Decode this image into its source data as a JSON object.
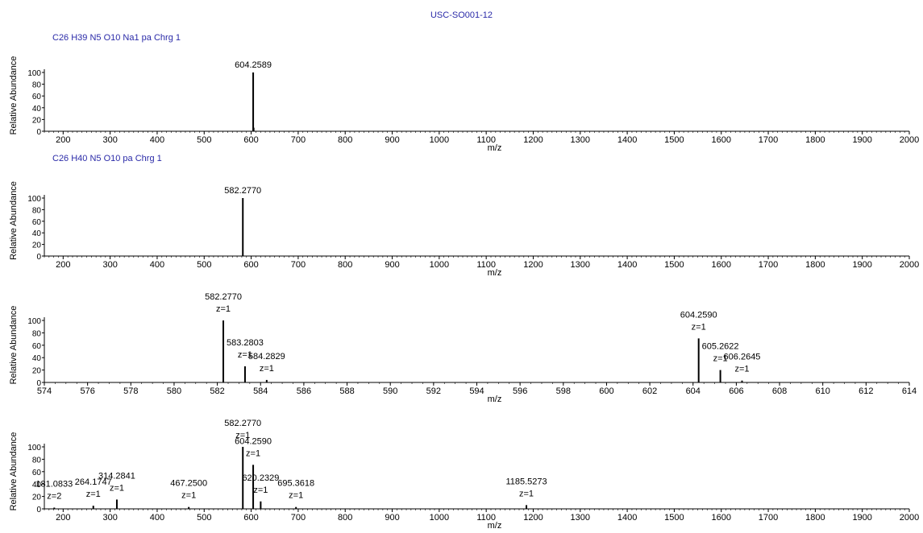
{
  "figure": {
    "title": "USC-SO001-12"
  },
  "chart_data": [
    {
      "type": "bar",
      "formula": "C26 H39 N5 O10 Na1 pa Chrg 1",
      "xlabel": "m/z",
      "ylabel": "Relative Abundance",
      "xlim": [
        160,
        2000
      ],
      "ylim": [
        0,
        100
      ],
      "xticks": [
        200,
        300,
        400,
        500,
        600,
        700,
        800,
        900,
        1000,
        1100,
        1200,
        1300,
        1400,
        1500,
        1600,
        1700,
        1800,
        1900,
        2000
      ],
      "yticks": [
        0,
        20,
        40,
        60,
        80,
        100
      ],
      "peaks": [
        {
          "x": 604.2589,
          "y": 100,
          "label": "604.2589"
        },
        {
          "x": 605.26,
          "y": 6
        }
      ]
    },
    {
      "type": "bar",
      "formula": "C26 H40 N5 O10 pa Chrg 1",
      "xlabel": "m/z",
      "ylabel": "Relative Abundance",
      "xlim": [
        160,
        2000
      ],
      "ylim": [
        0,
        100
      ],
      "xticks": [
        200,
        300,
        400,
        500,
        600,
        700,
        800,
        900,
        1000,
        1100,
        1200,
        1300,
        1400,
        1500,
        1600,
        1700,
        1800,
        1900,
        2000
      ],
      "yticks": [
        0,
        20,
        40,
        60,
        80,
        100
      ],
      "peaks": [
        {
          "x": 582.277,
          "y": 100,
          "label": "582.2770"
        }
      ]
    },
    {
      "type": "bar",
      "xlabel": "m/z",
      "ylabel": "Relative Abundance",
      "xlim": [
        574,
        614
      ],
      "ylim": [
        0,
        100
      ],
      "xticks": [
        574,
        576,
        578,
        580,
        582,
        584,
        586,
        588,
        590,
        592,
        594,
        596,
        598,
        600,
        602,
        604,
        606,
        608,
        610,
        612,
        614
      ],
      "yticks": [
        0,
        20,
        40,
        60,
        80,
        100
      ],
      "peaks": [
        {
          "x": 582.277,
          "y": 100,
          "label": "582.2770",
          "charge": "z=1"
        },
        {
          "x": 583.2803,
          "y": 26,
          "label": "583.2803",
          "charge": "z=1"
        },
        {
          "x": 584.2829,
          "y": 4,
          "label": "584.2829",
          "charge": "z=1"
        },
        {
          "x": 604.259,
          "y": 71,
          "label": "604.2590",
          "charge": "z=1"
        },
        {
          "x": 605.2622,
          "y": 20,
          "label": "605.2622",
          "charge": "z=1"
        },
        {
          "x": 606.2645,
          "y": 3,
          "label": "606.2645",
          "charge": "z=1"
        }
      ]
    },
    {
      "type": "bar",
      "xlabel": "m/z",
      "ylabel": "Relative Abundance",
      "xlim": [
        160,
        2000
      ],
      "ylim": [
        0,
        100
      ],
      "xticks": [
        200,
        300,
        400,
        500,
        600,
        700,
        800,
        900,
        1000,
        1100,
        1200,
        1300,
        1400,
        1500,
        1600,
        1700,
        1800,
        1900,
        2000
      ],
      "yticks": [
        0,
        20,
        40,
        60,
        80,
        100
      ],
      "peaks": [
        {
          "x": 181.0833,
          "y": 2,
          "label": "181.0833",
          "charge": "z=2"
        },
        {
          "x": 264.1747,
          "y": 5,
          "label": "264.1747",
          "charge": "z=1"
        },
        {
          "x": 314.2841,
          "y": 15,
          "label": "314.2841",
          "charge": "z=1"
        },
        {
          "x": 467.25,
          "y": 3,
          "label": "467.2500",
          "charge": "z=1"
        },
        {
          "x": 582.277,
          "y": 100,
          "label": "582.2770",
          "charge": "z=1"
        },
        {
          "x": 604.259,
          "y": 71,
          "label": "604.2590",
          "charge": "z=1"
        },
        {
          "x": 620.2329,
          "y": 12,
          "label": "620.2329",
          "charge": "z=1"
        },
        {
          "x": 695.3618,
          "y": 3,
          "label": "695.3618",
          "charge": "z=1"
        },
        {
          "x": 1185.5273,
          "y": 6,
          "label": "1185.5273",
          "charge": "z=1"
        }
      ]
    }
  ]
}
